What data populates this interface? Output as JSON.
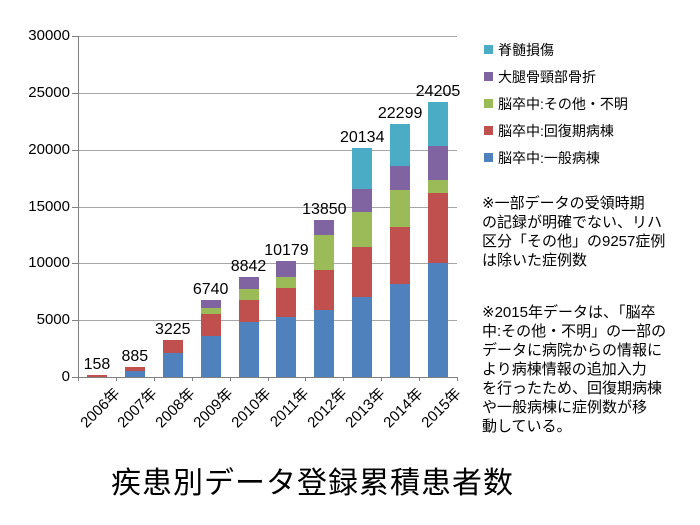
{
  "title": {
    "text": "疾患別データ登録累積患者数"
  },
  "chart_data": {
    "type": "bar",
    "stacked": true,
    "title": "疾患別データ登録累積患者数",
    "categories": [
      "2006年",
      "2007年",
      "2008年",
      "2009年",
      "2010年",
      "2011年",
      "2012年",
      "2013年",
      "2014年",
      "2015年"
    ],
    "series": [
      {
        "name": "脳卒中:一般病棟",
        "color": "#4F81BD",
        "values": [
          0,
          550,
          2100,
          3570,
          4800,
          5250,
          5850,
          7000,
          8150,
          10000
        ]
      },
      {
        "name": "脳卒中:回復期病棟",
        "color": "#C0504D",
        "values": [
          158,
          335,
          1125,
          1960,
          1950,
          2540,
          3530,
          4450,
          5080,
          6230
        ]
      },
      {
        "name": "脳卒中:その他・不明",
        "color": "#9BBB59",
        "values": [
          0,
          0,
          0,
          560,
          950,
          970,
          3100,
          3050,
          3250,
          1130
        ]
      },
      {
        "name": "大腿骨頸部骨折",
        "color": "#8064A2",
        "values": [
          0,
          0,
          0,
          650,
          1142,
          1419,
          1370,
          2060,
          2100,
          2930
        ]
      },
      {
        "name": "脊髄損傷",
        "color": "#4BACC6",
        "values": [
          0,
          0,
          0,
          0,
          0,
          0,
          0,
          3574,
          3719,
          3915
        ]
      }
    ],
    "totals": [
      158,
      885,
      3225,
      6740,
      8842,
      10179,
      13850,
      20134,
      22299,
      24205
    ],
    "ylim": [
      0,
      30000
    ],
    "y_ticks": [
      30000,
      25000,
      20000,
      15000,
      10000,
      5000,
      0
    ],
    "grid": true,
    "legend_position": "right-top",
    "xlabel": "",
    "ylabel": ""
  },
  "legend": {
    "items": [
      {
        "label": "脊髄損傷",
        "color": "#4BACC6"
      },
      {
        "label": "大腿骨頸部骨折",
        "color": "#8064A2"
      },
      {
        "label": "脳卒中:その他・不明",
        "color": "#9BBB59"
      },
      {
        "label": "脳卒中:回復期病棟",
        "color": "#C0504D"
      },
      {
        "label": "脳卒中:一般病棟",
        "color": "#4F81BD"
      }
    ]
  },
  "notes": {
    "note1": "※一部データの受領時期\nの記録が明確でない、リハ\n区分「その他」の9257症例\nは除いた症例数",
    "note2": "※2015年データは、「脳卒\n中:その他・不明」の一部の\nデータに病院からの情報に\nより病棟情報の追加入力\nを行ったため、回復期病棟\nや一般病棟に症例数が移\n動している。"
  }
}
